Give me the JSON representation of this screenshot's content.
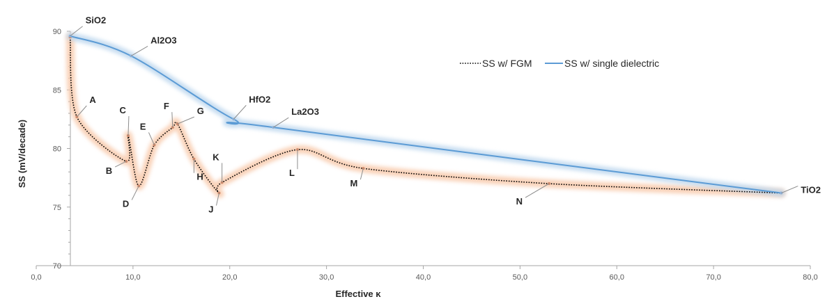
{
  "chart_data": {
    "type": "line",
    "title": "",
    "xlabel": "Effective κ",
    "ylabel": "SS (mV/decade)",
    "xlim": [
      0,
      80
    ],
    "ylim": [
      70,
      90
    ],
    "x_ticks": [
      "0,0",
      "10,0",
      "20,0",
      "30,0",
      "40,0",
      "50,0",
      "60,0",
      "70,0",
      "80,0"
    ],
    "y_ticks": [
      "70",
      "75",
      "80",
      "85",
      "90"
    ],
    "grid": false,
    "legend_position": "top-right",
    "series": [
      {
        "name": "SS w/ FGM",
        "style": "dotted",
        "color": "#000000",
        "glow": "#f8cbad",
        "points": [
          {
            "x": 3.5,
            "y": 89.5,
            "label": ""
          },
          {
            "x": 4.2,
            "y": 82.7,
            "label": "A"
          },
          {
            "x": 9.3,
            "y": 78.9,
            "label": "B"
          },
          {
            "x": 9.5,
            "y": 81.1,
            "label": "C"
          },
          {
            "x": 10.6,
            "y": 76.8,
            "label": "D"
          },
          {
            "x": 12.2,
            "y": 80.3,
            "label": "E"
          },
          {
            "x": 14.1,
            "y": 81.8,
            "label": "F"
          },
          {
            "x": 14.6,
            "y": 82.1,
            "label": "G"
          },
          {
            "x": 16.3,
            "y": 79.1,
            "label": "H"
          },
          {
            "x": 18.9,
            "y": 76.2,
            "label": "J"
          },
          {
            "x": 19.2,
            "y": 77.1,
            "label": "K"
          },
          {
            "x": 27.0,
            "y": 79.9,
            "label": "L"
          },
          {
            "x": 33.8,
            "y": 78.3,
            "label": "M"
          },
          {
            "x": 53.0,
            "y": 77.0,
            "label": "N"
          },
          {
            "x": 77.0,
            "y": 76.2,
            "label": ""
          }
        ]
      },
      {
        "name": "SS w/ single dielectric",
        "style": "solid",
        "color": "#5b9bd5",
        "glow": "#bdd7ee",
        "points": [
          {
            "x": 3.5,
            "y": 89.6,
            "label": "SiO2"
          },
          {
            "x": 9.8,
            "y": 87.9,
            "label": "Al2O3"
          },
          {
            "x": 20.4,
            "y": 82.5,
            "label": "HfO2"
          },
          {
            "x": 24.5,
            "y": 81.8,
            "label": "La2O3"
          },
          {
            "x": 77.0,
            "y": 76.2,
            "label": "TiO2"
          }
        ]
      }
    ]
  }
}
